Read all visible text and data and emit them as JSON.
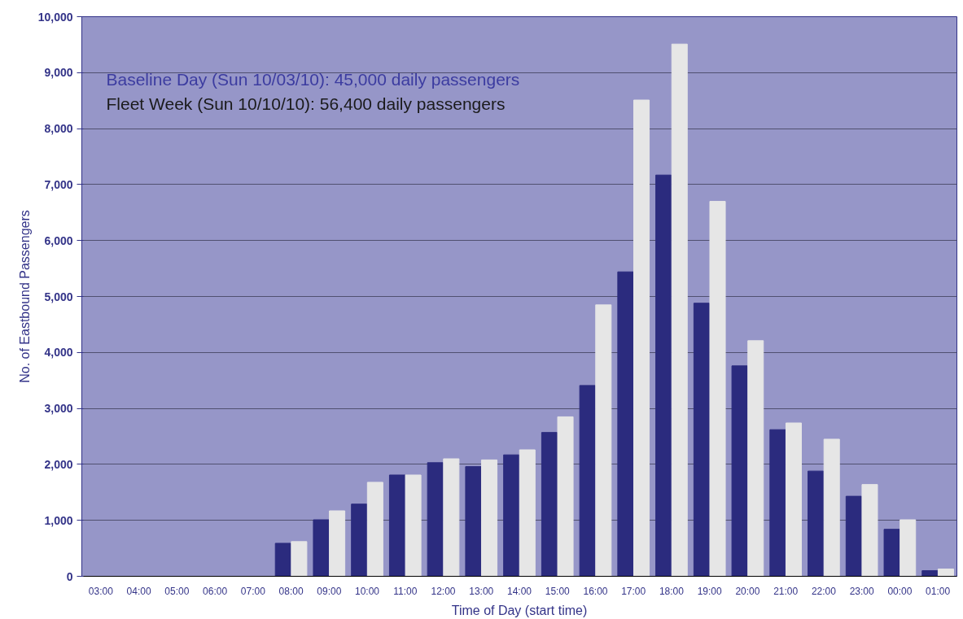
{
  "chart_data": {
    "type": "bar",
    "xlabel": "Time of Day (start time)",
    "ylabel": "No. of Eastbound Passengers",
    "categories": [
      "03:00",
      "04:00",
      "05:00",
      "06:00",
      "07:00",
      "08:00",
      "09:00",
      "10:00",
      "11:00",
      "12:00",
      "13:00",
      "14:00",
      "15:00",
      "16:00",
      "17:00",
      "18:00",
      "19:00",
      "20:00",
      "21:00",
      "22:00",
      "23:00",
      "00:00",
      "01:00"
    ],
    "series": [
      {
        "color": "#2b2b7e",
        "values": [
          0,
          0,
          0,
          0,
          0,
          590,
          1010,
          1290,
          1810,
          2030,
          1960,
          2170,
          2570,
          3410,
          5440,
          7170,
          4880,
          3760,
          2620,
          1880,
          1430,
          840,
          100
        ]
      },
      {
        "color": "#e6e6e6",
        "values": [
          0,
          0,
          0,
          0,
          0,
          620,
          1170,
          1680,
          1810,
          2100,
          2080,
          2260,
          2850,
          4850,
          8510,
          9510,
          6700,
          4210,
          2740,
          2450,
          1640,
          1010,
          130
        ]
      }
    ],
    "ylim": [
      0,
      10000
    ],
    "yticks": [
      {
        "value": 0,
        "label": "0"
      },
      {
        "value": 1000,
        "label": "1,000"
      },
      {
        "value": 2000,
        "label": "2,000"
      },
      {
        "value": 3000,
        "label": "3,000"
      },
      {
        "value": 4000,
        "label": "4,000"
      },
      {
        "value": 5000,
        "label": "5,000"
      },
      {
        "value": 6000,
        "label": "6,000"
      },
      {
        "value": 7000,
        "label": "7,000"
      },
      {
        "value": 8000,
        "label": "8,000"
      },
      {
        "value": 9000,
        "label": "9,000"
      },
      {
        "value": 10000,
        "label": "10,000"
      }
    ],
    "grid": "y",
    "annotations": [
      "Baseline Day (Sun 10/03/10): 45,000 daily passengers",
      "Fleet Week (Sun 10/10/10): 56,400 daily passengers"
    ]
  }
}
